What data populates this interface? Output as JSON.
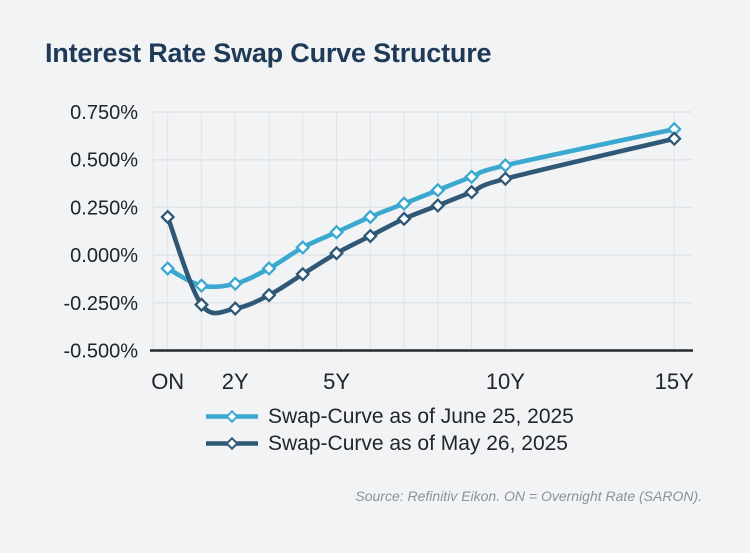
{
  "title": "Interest Rate Swap Curve Structure",
  "source_note": "Source: Refinitiv Eikon. ON = Overnight Rate (SARON).",
  "colors": {
    "background": "#F1F3F4",
    "title_text": "#1E3A56",
    "axis_text": "#212529",
    "grid_line": "#E1E4E7",
    "axis_line": "#26292D",
    "marker_fill": "#FDFEFE",
    "legend_text": "#22262A",
    "source_text": "#8B9197",
    "series_june": "#3BA8D0",
    "series_may": "#2F5876"
  },
  "chart_data": {
    "type": "line",
    "title": "Interest Rate Swap Curve Structure",
    "line_style": "smooth",
    "marker": "hollow-diamond",
    "grid": true,
    "legend_position": "bottom-left",
    "unit": "%",
    "categories": [
      "ON",
      "1Y",
      "2Y",
      "3Y",
      "4Y",
      "5Y",
      "6Y",
      "7Y",
      "8Y",
      "9Y",
      "10Y",
      "15Y"
    ],
    "x_years": [
      0,
      1,
      2,
      3,
      4,
      5,
      6,
      7,
      8,
      9,
      10,
      15
    ],
    "x_tick_labels": [
      "ON",
      "2Y",
      "5Y",
      "10Y",
      "15Y"
    ],
    "x_tick_years": [
      0,
      2,
      5,
      10,
      15
    ],
    "xlabel": "",
    "ylabel": "",
    "ylim": [
      -0.5,
      0.75
    ],
    "y_ticks": [
      0.75,
      0.5,
      0.25,
      0.0,
      -0.25,
      -0.5
    ],
    "y_tick_labels": [
      "0.750%",
      "0.500%",
      "0.250%",
      "0.000%",
      "-0.250%",
      "-0.500%"
    ],
    "series": [
      {
        "name": "Swap-Curve as of June 25, 2025",
        "color": "#3BA8D0",
        "values": [
          -0.07,
          -0.16,
          -0.15,
          -0.07,
          0.04,
          0.12,
          0.2,
          0.27,
          0.34,
          0.41,
          0.47,
          0.66
        ]
      },
      {
        "name": "Swap-Curve as of May 26, 2025",
        "color": "#2F5876",
        "values": [
          0.2,
          -0.26,
          -0.28,
          -0.21,
          -0.1,
          0.01,
          0.1,
          0.19,
          0.26,
          0.33,
          0.4,
          0.61
        ]
      }
    ]
  }
}
